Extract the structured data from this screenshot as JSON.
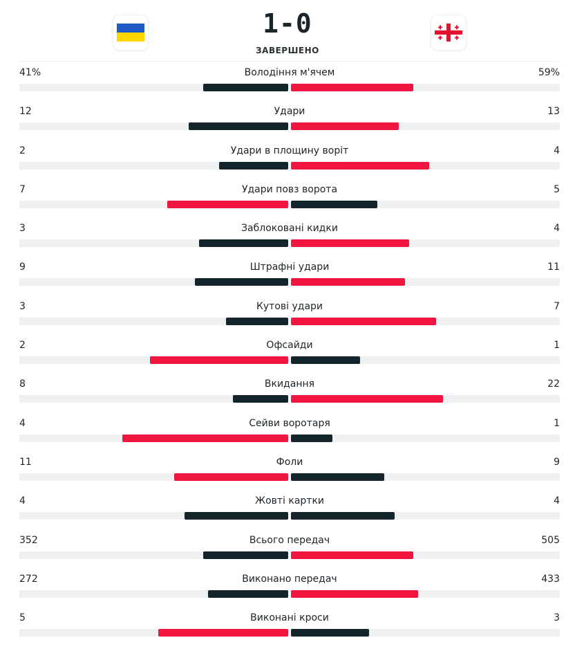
{
  "match": {
    "home_flag_icon": "ukraine-flag-icon",
    "away_flag_icon": "georgia-flag-icon",
    "score": "1-0",
    "status": "ЗАВЕРШЕНО"
  },
  "colors": {
    "leader": "#f1163f",
    "trailer": "#13252b",
    "track": "#eef0f2"
  },
  "stats": [
    {
      "label": "Володіння м'ячем",
      "home": "41%",
      "away": "59%",
      "home_value": 41,
      "away_value": 59
    },
    {
      "label": "Удари",
      "home": "12",
      "away": "13",
      "home_value": 12,
      "away_value": 13
    },
    {
      "label": "Удари в площину воріт",
      "home": "2",
      "away": "4",
      "home_value": 2,
      "away_value": 4
    },
    {
      "label": "Удари повз ворота",
      "home": "7",
      "away": "5",
      "home_value": 7,
      "away_value": 5
    },
    {
      "label": "Заблоковані кидки",
      "home": "3",
      "away": "4",
      "home_value": 3,
      "away_value": 4
    },
    {
      "label": "Штрафні удари",
      "home": "9",
      "away": "11",
      "home_value": 9,
      "away_value": 11
    },
    {
      "label": "Кутові удари",
      "home": "3",
      "away": "7",
      "home_value": 3,
      "away_value": 7
    },
    {
      "label": "Офсайди",
      "home": "2",
      "away": "1",
      "home_value": 2,
      "away_value": 1
    },
    {
      "label": "Вкидання",
      "home": "8",
      "away": "22",
      "home_value": 8,
      "away_value": 22
    },
    {
      "label": "Сейви воротаря",
      "home": "4",
      "away": "1",
      "home_value": 4,
      "away_value": 1
    },
    {
      "label": "Фоли",
      "home": "11",
      "away": "9",
      "home_value": 11,
      "away_value": 9
    },
    {
      "label": "Жовті картки",
      "home": "4",
      "away": "4",
      "home_value": 4,
      "away_value": 4
    },
    {
      "label": "Всього передач",
      "home": "352",
      "away": "505",
      "home_value": 352,
      "away_value": 505
    },
    {
      "label": "Виконано передач",
      "home": "272",
      "away": "433",
      "home_value": 272,
      "away_value": 433
    },
    {
      "label": "Виконані кроси",
      "home": "5",
      "away": "3",
      "home_value": 5,
      "away_value": 3
    }
  ]
}
